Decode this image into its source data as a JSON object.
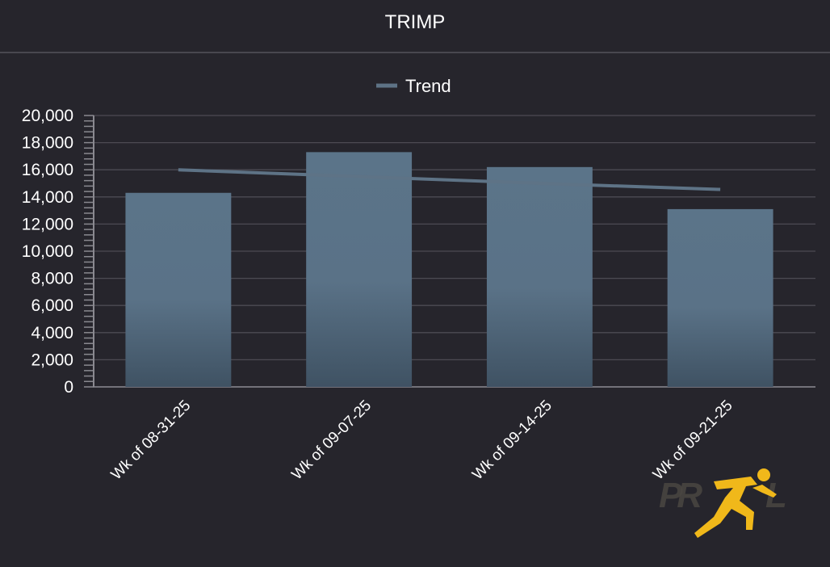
{
  "header": {
    "title": "TRIMP"
  },
  "chart_data": {
    "type": "bar",
    "title": "TRIMP",
    "categories": [
      "Wk of 08-31-25",
      "Wk of 09-07-25",
      "Wk of 09-14-25",
      "Wk of 09-21-25"
    ],
    "series": [
      {
        "type": "bar",
        "values": [
          14300,
          17300,
          16200,
          13100
        ]
      },
      {
        "name": "Trend",
        "type": "line",
        "values": [
          16000,
          15500,
          15000,
          14550
        ]
      }
    ],
    "y_ticks": [
      "0",
      "2,000",
      "4,000",
      "6,000",
      "8,000",
      "10,000",
      "12,000",
      "14,000",
      "16,000",
      "18,000",
      "20,000"
    ],
    "ylim": [
      0,
      20000
    ],
    "grid": true,
    "legend": "top-center",
    "colors": {
      "bar_top": "#5b7489",
      "bar_bottom": "#3f5263",
      "trend": "#5e7386",
      "grid": "#4c4b53",
      "axis": "#8a8990"
    }
  },
  "logo": {
    "text": "PRZL"
  }
}
